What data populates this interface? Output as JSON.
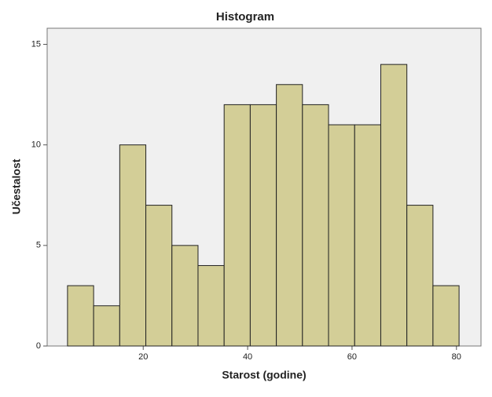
{
  "chart_data": {
    "type": "histogram",
    "title": "Histogram",
    "x_label": "Starost (godine)",
    "y_label": "Učestalost",
    "bins": [
      5.5,
      10.5,
      15.5,
      20.5,
      25.5,
      30.5,
      35.5,
      40.5,
      45.5,
      50.5,
      55.5,
      60.5,
      65.5,
      70.5,
      75.5,
      80.5
    ],
    "values": [
      3,
      2,
      10,
      7,
      5,
      4,
      12,
      12,
      13,
      12,
      11,
      11,
      14,
      7,
      3
    ],
    "color": "#d3ce97",
    "xlim": [
      1.6,
      84.7
    ],
    "xticks": [
      20,
      40,
      60,
      80
    ],
    "ylim": [
      0,
      15.8
    ],
    "yticks": [
      0,
      5,
      10,
      15
    ]
  }
}
